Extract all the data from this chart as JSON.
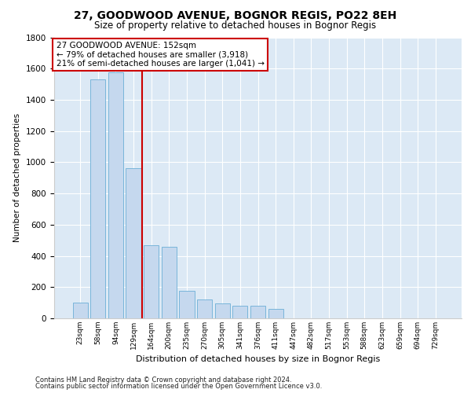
{
  "title1": "27, GOODWOOD AVENUE, BOGNOR REGIS, PO22 8EH",
  "title2": "Size of property relative to detached houses in Bognor Regis",
  "xlabel": "Distribution of detached houses by size in Bognor Regis",
  "ylabel": "Number of detached properties",
  "categories": [
    "23sqm",
    "58sqm",
    "94sqm",
    "129sqm",
    "164sqm",
    "200sqm",
    "235sqm",
    "270sqm",
    "305sqm",
    "341sqm",
    "376sqm",
    "411sqm",
    "447sqm",
    "482sqm",
    "517sqm",
    "553sqm",
    "588sqm",
    "623sqm",
    "659sqm",
    "694sqm",
    "729sqm"
  ],
  "values": [
    100,
    1530,
    1575,
    960,
    470,
    460,
    175,
    120,
    95,
    82,
    82,
    60,
    0,
    0,
    0,
    0,
    0,
    0,
    0,
    0,
    0
  ],
  "bar_color": "#c5d8ee",
  "bar_edge_color": "#6baed6",
  "vline_x": 3.5,
  "vline_color": "#cc0000",
  "annotation_text": "27 GOODWOOD AVENUE: 152sqm\n← 79% of detached houses are smaller (3,918)\n21% of semi-detached houses are larger (1,041) →",
  "annotation_box_color": "#ffffff",
  "annotation_box_edge": "#cc0000",
  "bg_color": "#dce9f5",
  "footer1": "Contains HM Land Registry data © Crown copyright and database right 2024.",
  "footer2": "Contains public sector information licensed under the Open Government Licence v3.0.",
  "ylim": [
    0,
    1800
  ],
  "yticks": [
    0,
    200,
    400,
    600,
    800,
    1000,
    1200,
    1400,
    1600,
    1800
  ]
}
